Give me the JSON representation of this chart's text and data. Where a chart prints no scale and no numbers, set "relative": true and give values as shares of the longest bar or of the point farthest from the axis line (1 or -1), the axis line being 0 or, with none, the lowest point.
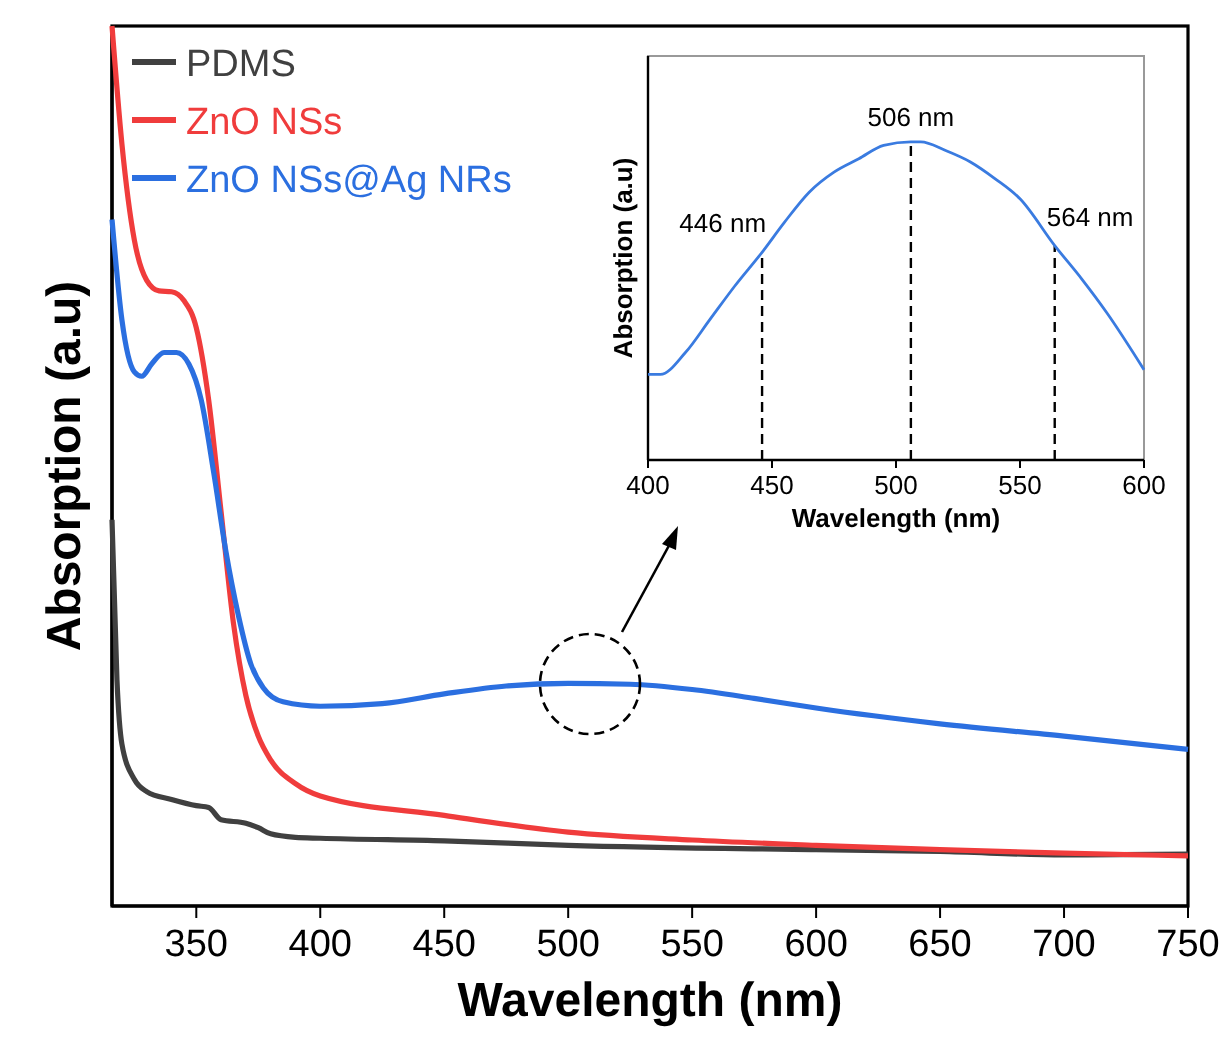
{
  "chart_data": [
    {
      "type": "line",
      "relative": true,
      "xlabel": "Wavelength (nm)",
      "ylabel": "Absorption (a.u)",
      "xlim": [
        316,
        750
      ],
      "xticks": [
        350,
        400,
        450,
        500,
        550,
        600,
        650,
        700,
        750
      ],
      "legend": "top left",
      "series": [
        {
          "name": "PDMS",
          "color": "#404040",
          "x": [
            316,
            318,
            320,
            325,
            330,
            340,
            350,
            355,
            360,
            370,
            375,
            380,
            390,
            400,
            450,
            500,
            600,
            650,
            700,
            750
          ],
          "values": [
            0.439,
            0.257,
            0.184,
            0.144,
            0.13,
            0.121,
            0.114,
            0.112,
            0.098,
            0.094,
            0.089,
            0.082,
            0.078,
            0.077,
            0.074,
            0.069,
            0.064,
            0.062,
            0.058,
            0.059
          ]
        },
        {
          "name": "ZnO NSs",
          "color": "#f03c3c",
          "x": [
            316,
            320,
            325,
            330,
            335,
            340,
            345,
            350,
            355,
            360,
            365,
            370,
            375,
            380,
            390,
            400,
            450,
            500,
            550,
            600,
            650,
            700,
            750
          ],
          "values": [
            1.0,
            0.866,
            0.757,
            0.711,
            0.699,
            0.698,
            0.688,
            0.657,
            0.575,
            0.448,
            0.321,
            0.239,
            0.193,
            0.166,
            0.139,
            0.125,
            0.103,
            0.084,
            0.075,
            0.069,
            0.064,
            0.06,
            0.057
          ]
        },
        {
          "name": "ZnO NSs@Ag NRs",
          "color": "#2b6fe0",
          "x": [
            316,
            320,
            325,
            328,
            332,
            337,
            342,
            347,
            352,
            357,
            362,
            367,
            372,
            377,
            385,
            400,
            425,
            450,
            475,
            500,
            525,
            550,
            575,
            600,
            650,
            700,
            750
          ],
          "values": [
            0.78,
            0.666,
            0.607,
            0.602,
            0.616,
            0.629,
            0.629,
            0.616,
            0.575,
            0.493,
            0.402,
            0.33,
            0.275,
            0.248,
            0.232,
            0.227,
            0.23,
            0.241,
            0.25,
            0.253,
            0.252,
            0.246,
            0.236,
            0.225,
            0.207,
            0.193,
            0.178
          ]
        }
      ]
    },
    {
      "type": "line",
      "relative": true,
      "xlabel": "Wavelength (nm)",
      "ylabel": "Absorption (a.u)",
      "xlim": [
        400,
        600
      ],
      "xticks": [
        400,
        450,
        500,
        550,
        600
      ],
      "series": [
        {
          "color": "#3a7be0",
          "x": [
            400,
            405,
            415,
            425,
            435,
            446,
            455,
            465,
            475,
            485,
            495,
            506,
            510,
            520,
            530,
            540,
            550,
            564,
            575,
            585,
            600
          ],
          "values": [
            0.269,
            0.269,
            0.337,
            0.442,
            0.547,
            0.653,
            0.747,
            0.842,
            0.905,
            0.947,
            0.989,
            1.0,
            1.0,
            0.973,
            0.937,
            0.884,
            0.821,
            0.674,
            0.568,
            0.463,
            0.284
          ]
        }
      ],
      "ref_lines": [
        {
          "axis": "x",
          "value": 446,
          "label": "446 nm",
          "line_style": "dashed"
        },
        {
          "axis": "x",
          "value": 506,
          "label": "506 nm",
          "line_style": "dashed"
        },
        {
          "axis": "x",
          "value": 564,
          "label": "564 nm",
          "line_style": "dashed"
        }
      ]
    }
  ]
}
